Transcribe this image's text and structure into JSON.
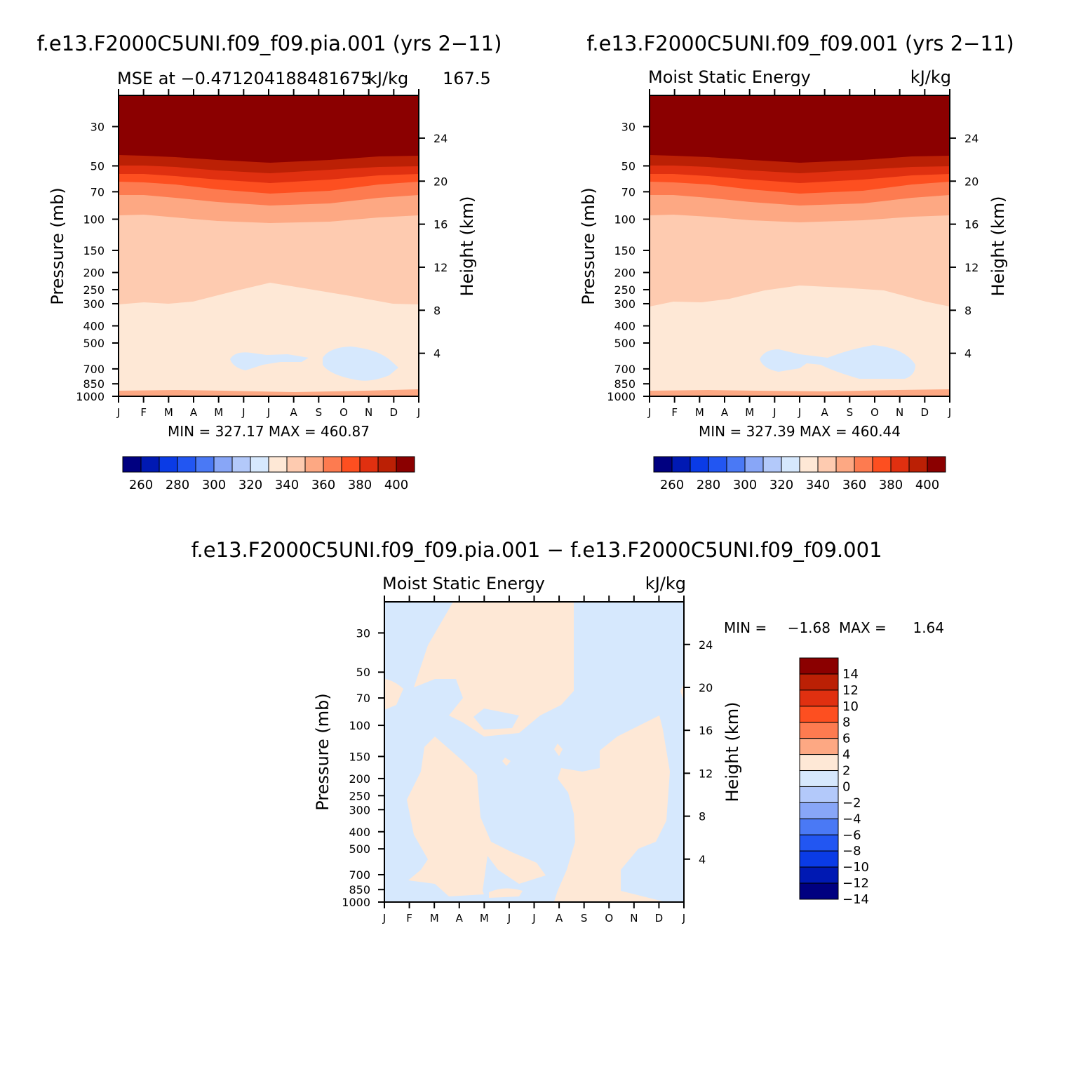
{
  "chart_data": [
    {
      "type": "heatmap",
      "case_title": "f.e13.F2000C5UNI.f09_f09.pia.001 (yrs 2−11)",
      "left_string": "MSE at −0.471204188481675",
      "right_string": "kJ/kg",
      "right_string_overlap": "167.5",
      "minmax": "MIN = 327.17 MAX = 460.87",
      "xlabel": "",
      "ylabel": "Pressure (mb)",
      "ylabel_right": "Height (km)",
      "months": [
        "J",
        "F",
        "M",
        "A",
        "M",
        "J",
        "J",
        "A",
        "S",
        "O",
        "N",
        "D",
        "J"
      ],
      "pressure_ticks": [
        30,
        50,
        70,
        100,
        150,
        200,
        250,
        300,
        400,
        500,
        700,
        850,
        1000
      ],
      "height_ticks": [
        24,
        20,
        16,
        12,
        8,
        4
      ],
      "ylim_mb": [
        1000,
        20
      ],
      "contour_interval": 10,
      "range_kj_kg": [
        327.17,
        460.87
      ],
      "colorbar_labels": [
        "260",
        "280",
        "300",
        "320",
        "340",
        "360",
        "380",
        "400"
      ]
    },
    {
      "type": "heatmap",
      "case_title": "f.e13.F2000C5UNI.f09_f09.001 (yrs 2−11)",
      "left_string": "Moist Static Energy",
      "right_string": "kJ/kg",
      "minmax": "MIN = 327.39 MAX = 460.44",
      "ylabel": "Pressure (mb)",
      "ylabel_right": "Height (km)",
      "months": [
        "J",
        "F",
        "M",
        "A",
        "M",
        "J",
        "J",
        "A",
        "S",
        "O",
        "N",
        "D",
        "J"
      ],
      "pressure_ticks": [
        30,
        50,
        70,
        100,
        150,
        200,
        250,
        300,
        400,
        500,
        700,
        850,
        1000
      ],
      "height_ticks": [
        24,
        20,
        16,
        12,
        8,
        4
      ],
      "range_kj_kg": [
        327.39,
        460.44
      ],
      "colorbar_labels": [
        "260",
        "280",
        "300",
        "320",
        "340",
        "360",
        "380",
        "400"
      ]
    },
    {
      "type": "heatmap",
      "case_title": "f.e13.F2000C5UNI.f09_f09.pia.001 − f.e13.F2000C5UNI.f09_f09.001",
      "left_string": "Moist Static Energy",
      "right_string": "kJ/kg",
      "min_label": "MIN =",
      "min_value": "−1.68",
      "max_label": "MAX =",
      "max_value": "1.64",
      "ylabel": "Pressure (mb)",
      "ylabel_right": "Height (km)",
      "months": [
        "J",
        "F",
        "M",
        "A",
        "M",
        "J",
        "J",
        "A",
        "S",
        "O",
        "N",
        "D",
        "J"
      ],
      "pressure_ticks": [
        30,
        50,
        70,
        100,
        150,
        200,
        250,
        300,
        400,
        500,
        700,
        850,
        1000
      ],
      "height_ticks": [
        24,
        20,
        16,
        12,
        8,
        4
      ],
      "contour_interval": 2,
      "range_kj_kg": [
        -1.68,
        1.64
      ],
      "colorbar_labels": [
        "14",
        "12",
        "10",
        "8",
        "6",
        "4",
        "2",
        "0",
        "−2",
        "−4",
        "−6",
        "−8",
        "−10",
        "−12",
        "−14"
      ]
    }
  ],
  "palette": {
    "blue_red_16": [
      "#000080",
      "#0019b3",
      "#0a3be6",
      "#2256f2",
      "#4a79f5",
      "#88a6f7",
      "#b3c9fa",
      "#d6e8fd",
      "#fee8d6",
      "#fecbb0",
      "#fda883",
      "#fd7b50",
      "#fd4f20",
      "#e03010",
      "#bb2005",
      "#8b0000"
    ],
    "diff_scale": [
      "#8b0000",
      "#bb2005",
      "#e03010",
      "#fd4f20",
      "#fd7b50",
      "#fda883",
      "#fee8d6",
      "#d6e8fd",
      "#b3c9fa",
      "#88a6f7",
      "#4a79f5",
      "#2256f2",
      "#0a3be6",
      "#0019b3",
      "#000080"
    ],
    "mse_bands": [
      "#8b0000",
      "#bb2005",
      "#e03010",
      "#fd4f20",
      "#fd7b50",
      "#fda883",
      "#fecbb0",
      "#fee8d6",
      "#d6e8fd"
    ],
    "diff_pos": "#fee8d6",
    "diff_neg": "#d6e8fd"
  }
}
